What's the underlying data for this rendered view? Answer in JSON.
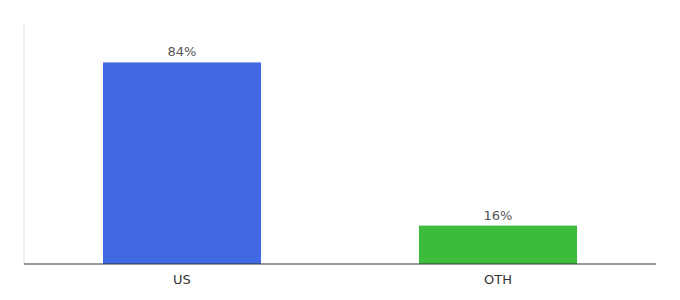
{
  "chart_data": {
    "type": "bar",
    "categories": [
      "US",
      "OTH"
    ],
    "values": [
      84,
      16
    ],
    "value_labels": [
      "84%",
      "16%"
    ],
    "colors": [
      "#4169e1",
      "#3dbb3d"
    ],
    "ylim": [
      0,
      100
    ],
    "data_labels": true,
    "grid": false,
    "tick_labels": "x"
  }
}
